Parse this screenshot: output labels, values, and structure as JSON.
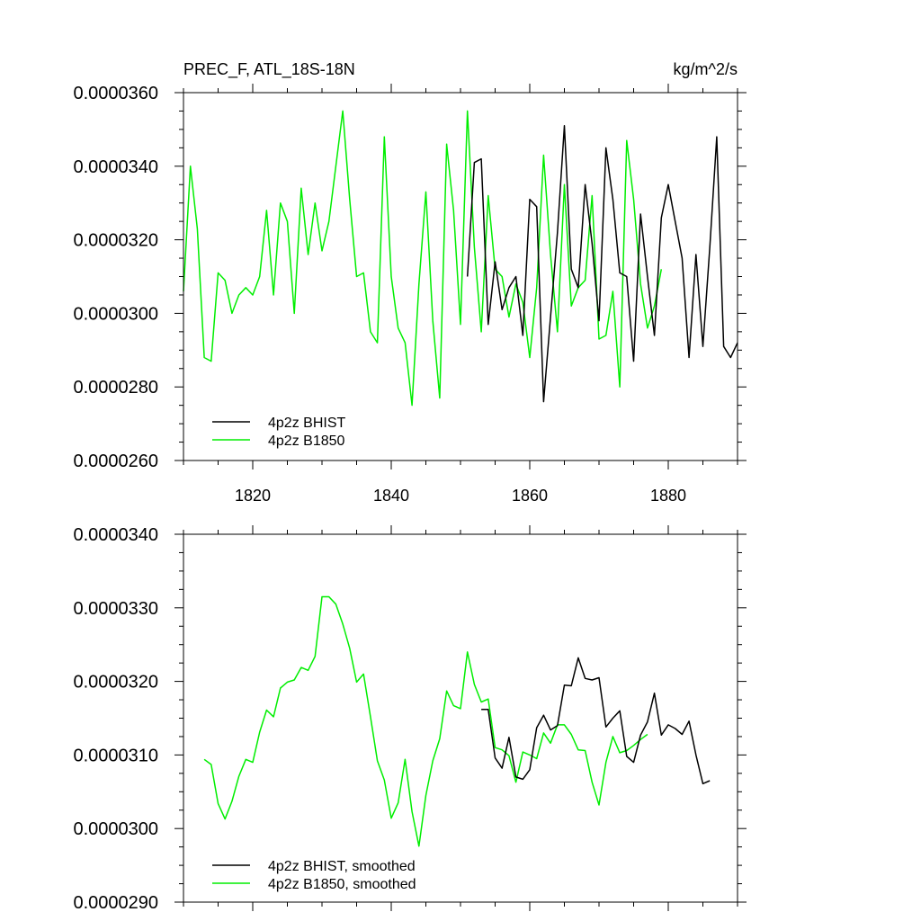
{
  "colors": {
    "bhist": "#000000",
    "b1850": "#00ee00",
    "axis": "#000000",
    "background": "#ffffff"
  },
  "chart_data": [
    {
      "type": "line",
      "title": "PREC_F, ATL_18S-18N",
      "units": "kg/m^2/s",
      "xlabel": "",
      "ylabel": "",
      "xlim": [
        1810,
        1890
      ],
      "ylim": [
        2.6e-05,
        3.6e-05
      ],
      "x_ticks": [
        1820,
        1840,
        1860,
        1880
      ],
      "x_tick_labels": [
        "1820",
        "1840",
        "1860",
        "1880"
      ],
      "y_ticks": [
        2.6e-05,
        2.8e-05,
        3e-05,
        3.2e-05,
        3.4e-05,
        3.6e-05
      ],
      "y_tick_labels": [
        "0.0000260",
        "0.0000280",
        "0.0000300",
        "0.0000320",
        "0.0000340",
        "0.0000360"
      ],
      "grid": false,
      "legend_position": "bottom-left",
      "series": [
        {
          "name": "4p2z BHIST",
          "color": "#000000",
          "x": [
            1851,
            1852,
            1853,
            1854,
            1855,
            1856,
            1857,
            1858,
            1859,
            1860,
            1861,
            1862,
            1863,
            1864,
            1865,
            1866,
            1867,
            1868,
            1869,
            1870,
            1871,
            1872,
            1873,
            1874,
            1875,
            1876,
            1877,
            1878,
            1879,
            1880,
            1881,
            1882,
            1883,
            1884,
            1885,
            1886,
            1887,
            1888,
            1889,
            1890
          ],
          "values": [
            3.1e-05,
            3.41e-05,
            3.42e-05,
            2.97e-05,
            3.14e-05,
            3.01e-05,
            3.07e-05,
            3.1e-05,
            2.94e-05,
            3.31e-05,
            3.29e-05,
            2.76e-05,
            2.99e-05,
            3.22e-05,
            3.51e-05,
            3.12e-05,
            3.07e-05,
            3.35e-05,
            3.19e-05,
            2.98e-05,
            3.45e-05,
            3.31e-05,
            3.11e-05,
            3.1e-05,
            2.87e-05,
            3.27e-05,
            3.1e-05,
            2.94e-05,
            3.26e-05,
            3.35e-05,
            3.25e-05,
            3.15e-05,
            2.88e-05,
            3.16e-05,
            2.91e-05,
            3.18e-05,
            3.48e-05,
            2.91e-05,
            2.88e-05,
            2.92e-05
          ]
        },
        {
          "name": "4p2z B1850",
          "color": "#00ee00",
          "x": [
            1810,
            1811,
            1812,
            1813,
            1814,
            1815,
            1816,
            1817,
            1818,
            1819,
            1820,
            1821,
            1822,
            1823,
            1824,
            1825,
            1826,
            1827,
            1828,
            1829,
            1830,
            1831,
            1832,
            1833,
            1834,
            1835,
            1836,
            1837,
            1838,
            1839,
            1840,
            1841,
            1842,
            1843,
            1844,
            1845,
            1846,
            1847,
            1848,
            1849,
            1850,
            1851,
            1852,
            1853,
            1854,
            1855,
            1856,
            1857,
            1858,
            1859,
            1860,
            1861,
            1862,
            1863,
            1864,
            1865,
            1866,
            1867,
            1868,
            1869,
            1870,
            1871,
            1872,
            1873,
            1874,
            1875,
            1876,
            1877,
            1878,
            1879
          ],
          "values": [
            3.06e-05,
            3.4e-05,
            3.23e-05,
            2.88e-05,
            2.87e-05,
            3.11e-05,
            3.09e-05,
            3e-05,
            3.05e-05,
            3.07e-05,
            3.05e-05,
            3.1e-05,
            3.28e-05,
            3.05e-05,
            3.3e-05,
            3.25e-05,
            3e-05,
            3.34e-05,
            3.16e-05,
            3.3e-05,
            3.17e-05,
            3.25e-05,
            3.4e-05,
            3.55e-05,
            3.31e-05,
            3.1e-05,
            3.11e-05,
            2.95e-05,
            2.92e-05,
            3.48e-05,
            3.1e-05,
            2.96e-05,
            2.92e-05,
            2.75e-05,
            3.08e-05,
            3.33e-05,
            2.98e-05,
            2.77e-05,
            3.46e-05,
            3.28e-05,
            2.97e-05,
            3.55e-05,
            3.18e-05,
            2.95e-05,
            3.32e-05,
            3.12e-05,
            3.1e-05,
            2.99e-05,
            3.08e-05,
            3.03e-05,
            2.88e-05,
            3.07e-05,
            3.43e-05,
            3.16e-05,
            2.95e-05,
            3.35e-05,
            3.02e-05,
            3.07e-05,
            3.09e-05,
            3.32e-05,
            2.93e-05,
            2.94e-05,
            3.06e-05,
            2.8e-05,
            3.47e-05,
            3.31e-05,
            3.08e-05,
            2.96e-05,
            3.02e-05,
            3.12e-05
          ]
        }
      ]
    },
    {
      "type": "line",
      "title": "",
      "xlabel": "",
      "ylabel": "",
      "xlim": [
        1810,
        1890
      ],
      "ylim": [
        2.9e-05,
        3.4e-05
      ],
      "x_ticks": [
        1820,
        1840,
        1860,
        1880
      ],
      "x_tick_labels": [],
      "y_ticks": [
        2.9e-05,
        3e-05,
        3.1e-05,
        3.2e-05,
        3.3e-05,
        3.4e-05
      ],
      "y_tick_labels": [
        "0.0000290",
        "0.0000300",
        "0.0000310",
        "0.0000320",
        "0.0000330",
        "0.0000340"
      ],
      "grid": false,
      "legend_position": "bottom-left",
      "series": [
        {
          "name": "4p2z BHIST, smoothed",
          "color": "#000000",
          "x": [
            1853,
            1854,
            1855,
            1856,
            1857,
            1858,
            1859,
            1860,
            1861,
            1862,
            1863,
            1864,
            1865,
            1866,
            1867,
            1868,
            1869,
            1870,
            1871,
            1872,
            1873,
            1874,
            1875,
            1876,
            1877,
            1878,
            1879,
            1880,
            1881,
            1882,
            1883,
            1884,
            1885,
            1886
          ],
          "values": [
            3.162e-05,
            3.162e-05,
            3.096e-05,
            3.082e-05,
            3.124e-05,
            3.07e-05,
            3.067e-05,
            3.08e-05,
            3.137e-05,
            3.154e-05,
            3.134e-05,
            3.14e-05,
            3.195e-05,
            3.194e-05,
            3.232e-05,
            3.204e-05,
            3.202e-05,
            3.205e-05,
            3.138e-05,
            3.15e-05,
            3.16e-05,
            3.098e-05,
            3.09e-05,
            3.127e-05,
            3.145e-05,
            3.184e-05,
            3.127e-05,
            3.141e-05,
            3.136e-05,
            3.128e-05,
            3.146e-05,
            3.1e-05,
            3.061e-05,
            3.065e-05
          ]
        },
        {
          "name": "4p2z B1850, smoothed",
          "color": "#00ee00",
          "x": [
            1813,
            1814,
            1815,
            1816,
            1817,
            1818,
            1819,
            1820,
            1821,
            1822,
            1823,
            1824,
            1825,
            1826,
            1827,
            1828,
            1829,
            1830,
            1831,
            1832,
            1833,
            1834,
            1835,
            1836,
            1837,
            1838,
            1839,
            1840,
            1841,
            1842,
            1843,
            1844,
            1845,
            1846,
            1847,
            1848,
            1849,
            1850,
            1851,
            1852,
            1853,
            1854,
            1855,
            1856,
            1857,
            1858,
            1859,
            1860,
            1861,
            1862,
            1863,
            1864,
            1865,
            1866,
            1867,
            1868,
            1869,
            1870,
            1871,
            1872,
            1873,
            1874,
            1875,
            1876,
            1877
          ],
          "values": [
            3.094e-05,
            3.087e-05,
            3.034e-05,
            3.013e-05,
            3.037e-05,
            3.071e-05,
            3.094e-05,
            3.09e-05,
            3.131e-05,
            3.161e-05,
            3.152e-05,
            3.191e-05,
            3.199e-05,
            3.202e-05,
            3.219e-05,
            3.215e-05,
            3.234e-05,
            3.315e-05,
            3.315e-05,
            3.305e-05,
            3.278e-05,
            3.245e-05,
            3.199e-05,
            3.21e-05,
            3.152e-05,
            3.092e-05,
            3.066e-05,
            3.014e-05,
            3.035e-05,
            3.094e-05,
            3.023e-05,
            2.976e-05,
            3.045e-05,
            3.092e-05,
            3.122e-05,
            3.187e-05,
            3.167e-05,
            3.163e-05,
            3.24e-05,
            3.196e-05,
            3.172e-05,
            3.176e-05,
            3.11e-05,
            3.107e-05,
            3.099e-05,
            3.063e-05,
            3.104e-05,
            3.1e-05,
            3.095e-05,
            3.13e-05,
            3.116e-05,
            3.141e-05,
            3.141e-05,
            3.128e-05,
            3.107e-05,
            3.106e-05,
            3.063e-05,
            3.032e-05,
            3.09e-05,
            3.125e-05,
            3.103e-05,
            3.106e-05,
            3.113e-05,
            3.121e-05,
            3.128e-05
          ]
        }
      ]
    }
  ]
}
